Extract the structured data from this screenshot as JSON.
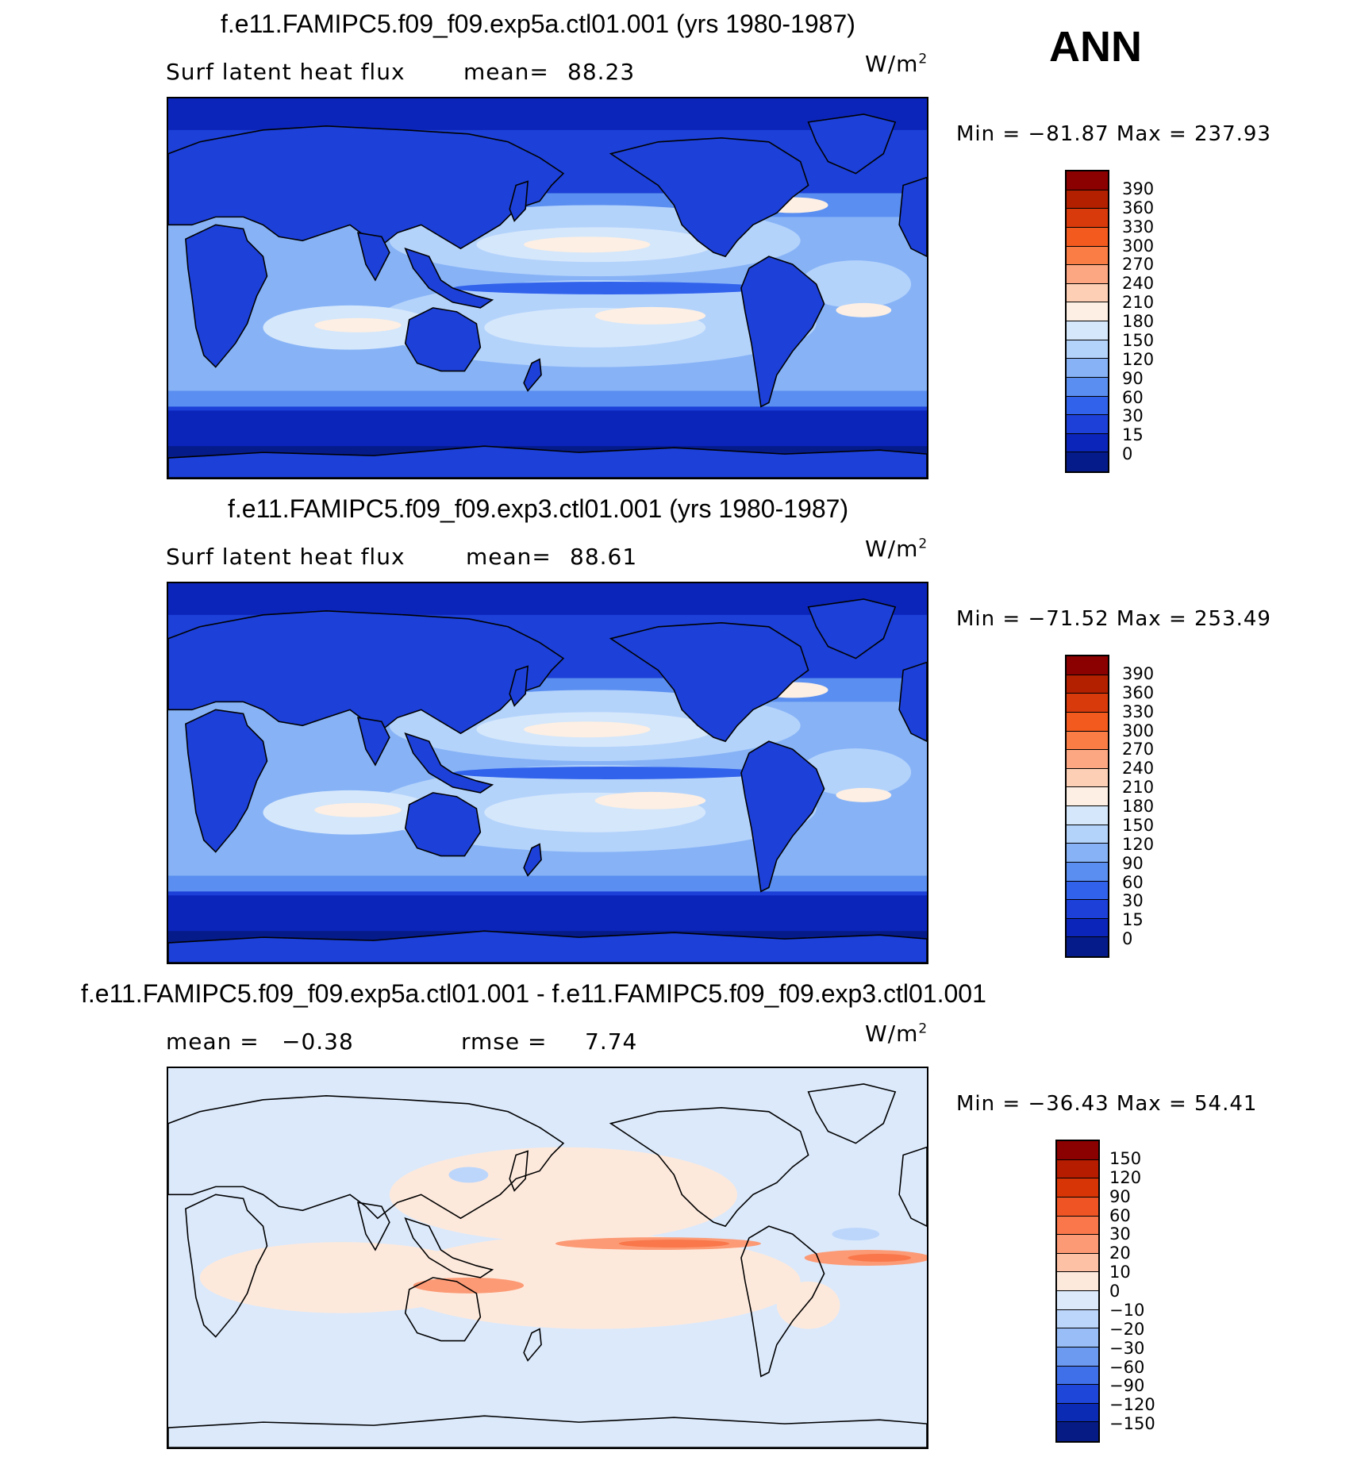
{
  "season": "ANN",
  "panels": [
    {
      "title": "f.e11.FAMIPC5.f09_f09.exp5a.ctl01.001 (yrs 1980-1987)",
      "variable": "Surf latent heat flux",
      "stat_label": "mean=",
      "stat_value": "88.23",
      "stat2_label": "",
      "stat2_value": "",
      "units": "W/m",
      "units_sup": "2",
      "minmax": "Min  =  −81.87  Max  =  237.93",
      "colorbar": {
        "labels": [
          "390",
          "360",
          "330",
          "300",
          "270",
          "240",
          "210",
          "180",
          "150",
          "120",
          "90",
          "60",
          "30",
          "15",
          "0"
        ],
        "colors": [
          "#8b0000",
          "#b22000",
          "#d83a0c",
          "#f25a1e",
          "#fa7d45",
          "#fca782",
          "#fdd0b5",
          "#fdefe3",
          "#d5e7fb",
          "#b4d3fb",
          "#87b3f6",
          "#5a8ef0",
          "#3162ec",
          "#1c40d8",
          "#0b25ba",
          "#061b8a"
        ]
      },
      "field": "sim"
    },
    {
      "title": "f.e11.FAMIPC5.f09_f09.exp3.ctl01.001 (yrs 1980-1987)",
      "variable": "Surf latent heat flux",
      "stat_label": "mean=",
      "stat_value": "88.61",
      "stat2_label": "",
      "stat2_value": "",
      "units": "W/m",
      "units_sup": "2",
      "minmax": "Min  =  −71.52  Max  =  253.49",
      "colorbar": {
        "labels": [
          "390",
          "360",
          "330",
          "300",
          "270",
          "240",
          "210",
          "180",
          "150",
          "120",
          "90",
          "60",
          "30",
          "15",
          "0"
        ],
        "colors": [
          "#8b0000",
          "#b22000",
          "#d83a0c",
          "#f25a1e",
          "#fa7d45",
          "#fca782",
          "#fdd0b5",
          "#fdefe3",
          "#d5e7fb",
          "#b4d3fb",
          "#87b3f6",
          "#5a8ef0",
          "#3162ec",
          "#1c40d8",
          "#0b25ba",
          "#061b8a"
        ]
      },
      "field": "sim"
    },
    {
      "title": "f.e11.FAMIPC5.f09_f09.exp5a.ctl01.001 - f.e11.FAMIPC5.f09_f09.exp3.ctl01.001",
      "variable": "",
      "stat_label": "mean  =",
      "stat_value": "−0.38",
      "stat2_label": "rmse  =",
      "stat2_value": "7.74",
      "units": "W/m",
      "units_sup": "2",
      "minmax": "Min  =  −36.43  Max  =    54.41",
      "colorbar": {
        "labels": [
          "150",
          "120",
          "90",
          "60",
          "30",
          "20",
          "10",
          "0",
          "−10",
          "−20",
          "−30",
          "−60",
          "−90",
          "−120",
          "−150"
        ],
        "colors": [
          "#8b0000",
          "#b51c00",
          "#d83506",
          "#ef5424",
          "#f9774a",
          "#fc9a75",
          "#fdc2a5",
          "#fde9dc",
          "#dbe9fb",
          "#bcd6fb",
          "#98bdf7",
          "#6c9af1",
          "#3f70ea",
          "#1e46d8",
          "#0c2bb4",
          "#061b84"
        ]
      },
      "field": "diff"
    }
  ]
}
